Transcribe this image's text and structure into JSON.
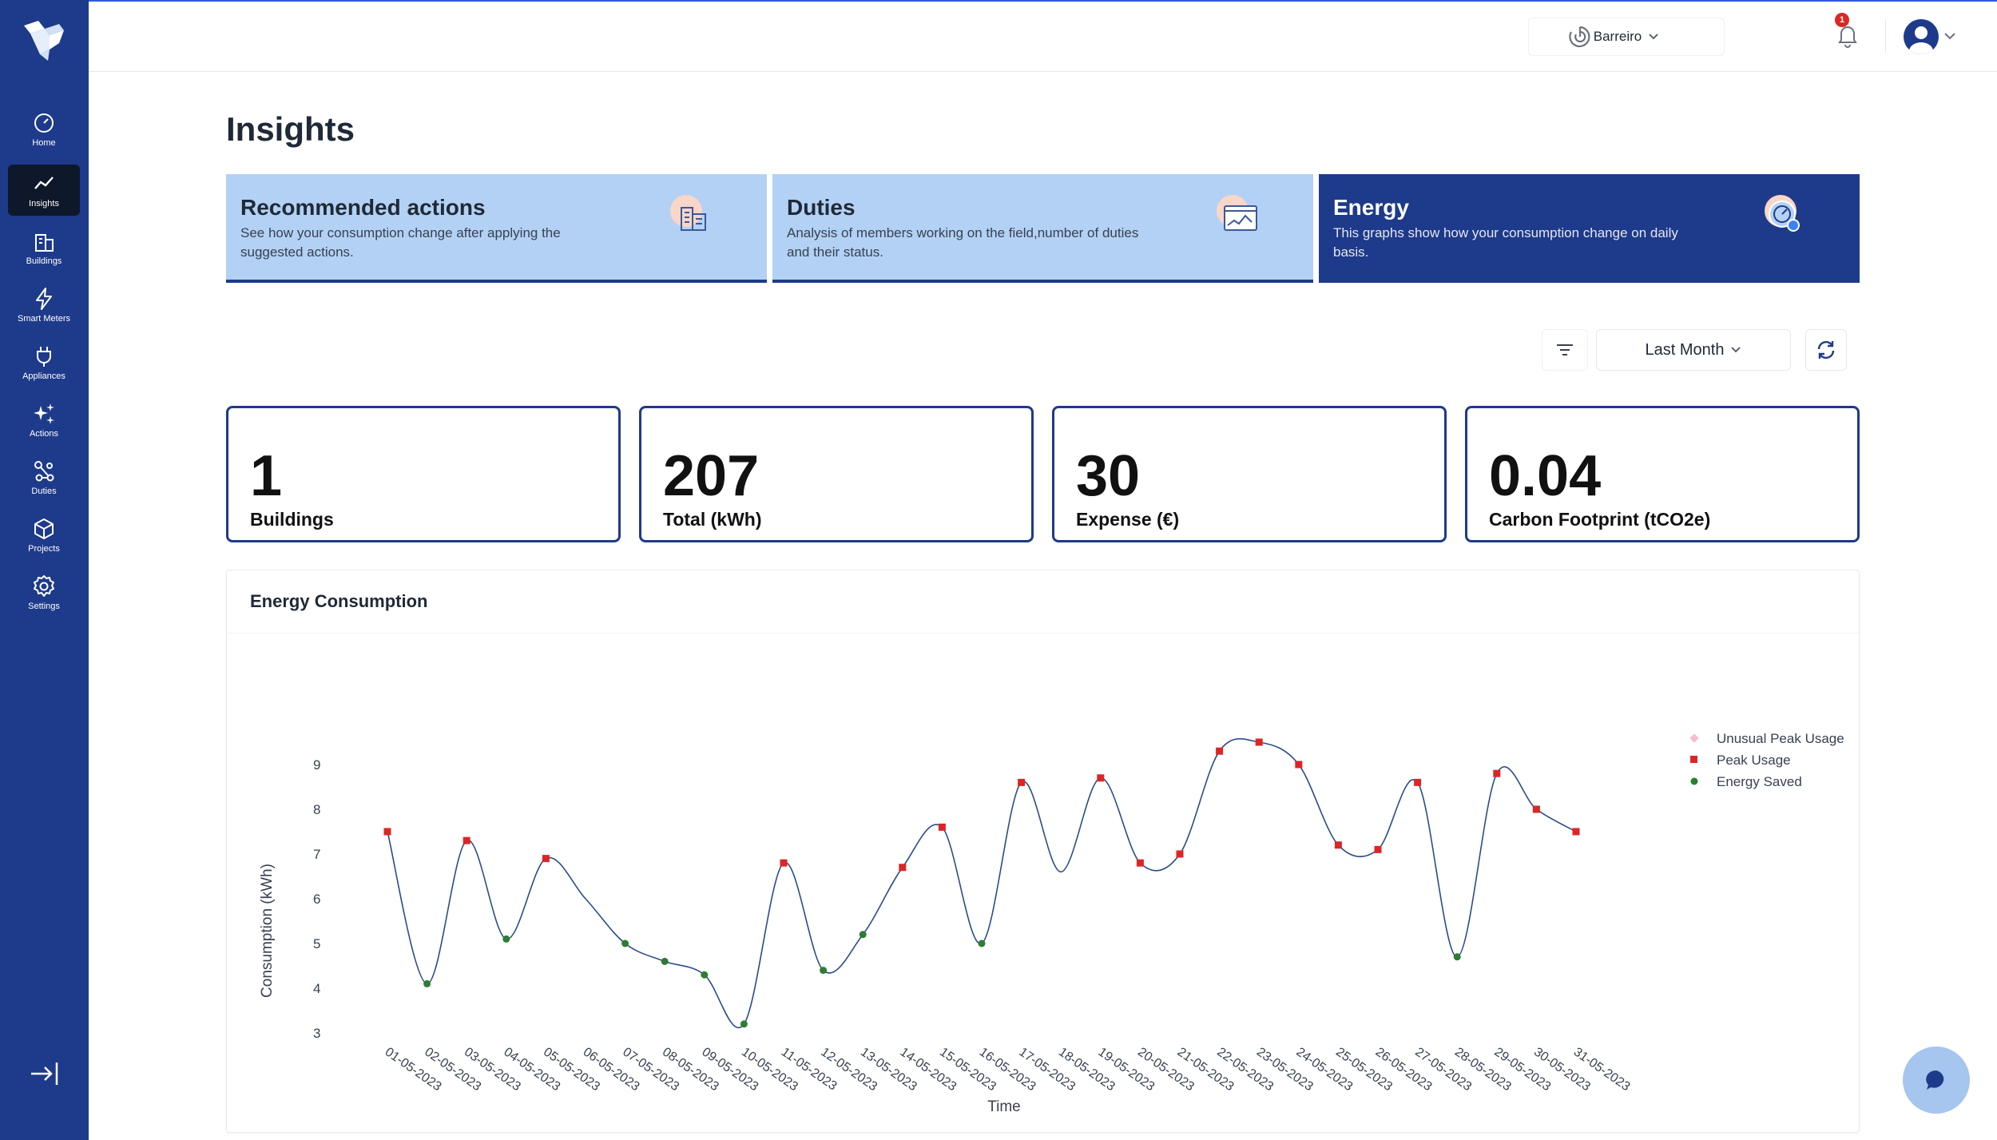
{
  "sidebar": {
    "items": [
      {
        "label": "Home",
        "icon": "home-icon"
      },
      {
        "label": "Insights",
        "icon": "insights-icon"
      },
      {
        "label": "Buildings",
        "icon": "buildings-icon"
      },
      {
        "label": "Smart Meters",
        "icon": "bolt-icon"
      },
      {
        "label": "Appliances",
        "icon": "plug-icon"
      },
      {
        "label": "Actions",
        "icon": "sparkles-icon"
      },
      {
        "label": "Duties",
        "icon": "network-icon"
      },
      {
        "label": "Projects",
        "icon": "cube-icon"
      },
      {
        "label": "Settings",
        "icon": "gear-icon"
      }
    ],
    "active": "Insights"
  },
  "header": {
    "site": "Barreiro",
    "notifications": "1"
  },
  "page": {
    "title": "Insights"
  },
  "cards": [
    {
      "title": "Recommended actions",
      "desc": "See how your consumption change after applying the suggested actions.",
      "icon": "buildings-illustration-icon"
    },
    {
      "title": "Duties",
      "desc": "Analysis of members working on the field,number of duties and their status.",
      "icon": "chart-window-icon"
    },
    {
      "title": "Energy",
      "desc": "This graphs show how your consumption change on daily basis.",
      "icon": "energy-gauge-icon"
    }
  ],
  "filters": {
    "period": "Last Month"
  },
  "stats": [
    {
      "value": "1",
      "label": "Buildings"
    },
    {
      "value": "207",
      "label": "Total (kWh)"
    },
    {
      "value": "30",
      "label": "Expense (€)"
    },
    {
      "value": "0.04",
      "label": "Carbon Footprint (tCO2e)"
    }
  ],
  "panel": {
    "title": "Energy Consumption"
  },
  "colors": {
    "primary": "#1e3a8a",
    "card_light": "#b3d1f4",
    "peak": "#dc2626",
    "saved": "#2e7d32",
    "unusual": "#f8bbd0"
  },
  "chart_data": {
    "type": "line",
    "xlabel": "Time",
    "ylabel": "Consumption (kWh)",
    "yticks": [
      3,
      4,
      5,
      6,
      7,
      8,
      9
    ],
    "ylim": [
      3,
      9
    ],
    "grid": false,
    "legend_position": "top-right",
    "x": [
      "01-05-2023",
      "02-05-2023",
      "03-05-2023",
      "04-05-2023",
      "05-05-2023",
      "06-05-2023",
      "07-05-2023",
      "08-05-2023",
      "09-05-2023",
      "10-05-2023",
      "11-05-2023",
      "12-05-2023",
      "13-05-2023",
      "14-05-2023",
      "15-05-2023",
      "16-05-2023",
      "17-05-2023",
      "18-05-2023",
      "19-05-2023",
      "20-05-2023",
      "21-05-2023",
      "22-05-2023",
      "23-05-2023",
      "24-05-2023",
      "25-05-2023",
      "26-05-2023",
      "27-05-2023",
      "28-05-2023",
      "29-05-2023",
      "30-05-2023",
      "31-05-2023"
    ],
    "values": [
      7.5,
      4.1,
      7.3,
      5.1,
      6.9,
      6.0,
      5.0,
      4.6,
      4.3,
      3.2,
      6.8,
      4.4,
      5.2,
      6.7,
      7.6,
      5.0,
      8.6,
      6.6,
      8.7,
      6.8,
      7.0,
      9.3,
      9.5,
      9.0,
      7.2,
      7.1,
      8.6,
      4.7,
      8.8,
      8.0,
      7.5
    ],
    "categories": [
      "peak",
      "saved",
      "peak",
      "saved",
      "peak",
      "none",
      "saved",
      "saved",
      "saved",
      "saved",
      "peak",
      "saved",
      "saved",
      "peak",
      "peak",
      "saved",
      "peak",
      "none",
      "peak",
      "peak",
      "peak",
      "peak",
      "peak",
      "peak",
      "peak",
      "peak",
      "peak",
      "saved",
      "peak",
      "peak",
      "peak"
    ],
    "legend": [
      {
        "name": "Unusual Peak Usage",
        "marker": "diamond",
        "color": "#f8bbd0"
      },
      {
        "name": "Peak Usage",
        "marker": "square",
        "color": "#dc2626"
      },
      {
        "name": "Energy Saved",
        "marker": "circle",
        "color": "#2e7d32"
      }
    ]
  }
}
